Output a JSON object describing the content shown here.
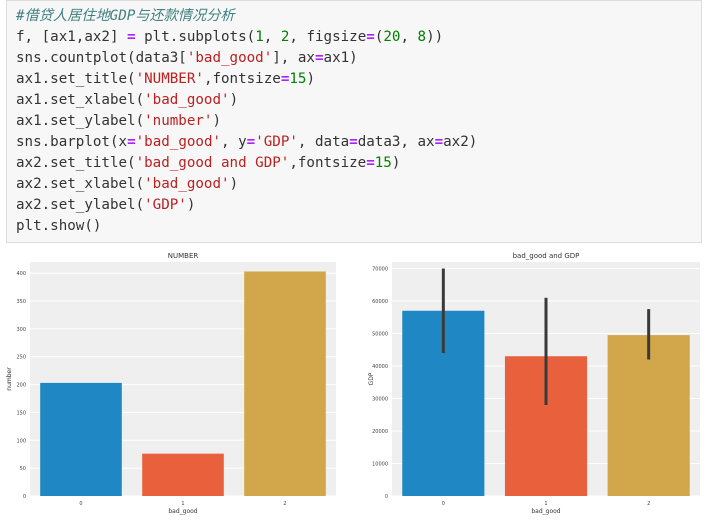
{
  "code_cell": {
    "lines": [
      [
        {
          "t": "cm",
          "v": "#借贷人居住地GDP与还款情况分析"
        }
      ],
      [
        {
          "t": "n",
          "v": "f, [ax1,ax2] "
        },
        {
          "t": "op",
          "v": "="
        },
        {
          "t": "n",
          "v": " plt."
        },
        {
          "t": "fn",
          "v": "subplots"
        },
        {
          "t": "n",
          "v": "("
        },
        {
          "t": "num",
          "v": "1"
        },
        {
          "t": "n",
          "v": ", "
        },
        {
          "t": "num",
          "v": "2"
        },
        {
          "t": "n",
          "v": ", figsize"
        },
        {
          "t": "op",
          "v": "="
        },
        {
          "t": "n",
          "v": "("
        },
        {
          "t": "num",
          "v": "20"
        },
        {
          "t": "n",
          "v": ", "
        },
        {
          "t": "num",
          "v": "8"
        },
        {
          "t": "n",
          "v": "))"
        }
      ],
      [
        {
          "t": "n",
          "v": "sns."
        },
        {
          "t": "fn",
          "v": "countplot"
        },
        {
          "t": "n",
          "v": "(data3["
        },
        {
          "t": "str",
          "v": "'bad_good'"
        },
        {
          "t": "n",
          "v": "], ax"
        },
        {
          "t": "op",
          "v": "="
        },
        {
          "t": "n",
          "v": "ax1)"
        }
      ],
      [
        {
          "t": "n",
          "v": "ax1."
        },
        {
          "t": "fn",
          "v": "set_title"
        },
        {
          "t": "n",
          "v": "("
        },
        {
          "t": "str",
          "v": "'NUMBER'"
        },
        {
          "t": "n",
          "v": ",fontsize"
        },
        {
          "t": "op",
          "v": "="
        },
        {
          "t": "num",
          "v": "15"
        },
        {
          "t": "n",
          "v": ")"
        }
      ],
      [
        {
          "t": "n",
          "v": "ax1."
        },
        {
          "t": "fn",
          "v": "set_xlabel"
        },
        {
          "t": "n",
          "v": "("
        },
        {
          "t": "str",
          "v": "'bad_good'"
        },
        {
          "t": "n",
          "v": ")"
        }
      ],
      [
        {
          "t": "n",
          "v": "ax1."
        },
        {
          "t": "fn",
          "v": "set_ylabel"
        },
        {
          "t": "n",
          "v": "("
        },
        {
          "t": "str",
          "v": "'number'"
        },
        {
          "t": "n",
          "v": ")"
        }
      ],
      [
        {
          "t": "n",
          "v": "sns."
        },
        {
          "t": "fn",
          "v": "barplot"
        },
        {
          "t": "n",
          "v": "(x"
        },
        {
          "t": "op",
          "v": "="
        },
        {
          "t": "str",
          "v": "'bad_good'"
        },
        {
          "t": "n",
          "v": ", y"
        },
        {
          "t": "op",
          "v": "="
        },
        {
          "t": "str",
          "v": "'GDP'"
        },
        {
          "t": "n",
          "v": ", data"
        },
        {
          "t": "op",
          "v": "="
        },
        {
          "t": "n",
          "v": "data3, ax"
        },
        {
          "t": "op",
          "v": "="
        },
        {
          "t": "n",
          "v": "ax2)"
        }
      ],
      [
        {
          "t": "n",
          "v": "ax2."
        },
        {
          "t": "fn",
          "v": "set_title"
        },
        {
          "t": "n",
          "v": "("
        },
        {
          "t": "str",
          "v": "'bad_good and GDP'"
        },
        {
          "t": "n",
          "v": ",fontsize"
        },
        {
          "t": "op",
          "v": "="
        },
        {
          "t": "num",
          "v": "15"
        },
        {
          "t": "n",
          "v": ")"
        }
      ],
      [
        {
          "t": "n",
          "v": "ax2."
        },
        {
          "t": "fn",
          "v": "set_xlabel"
        },
        {
          "t": "n",
          "v": "("
        },
        {
          "t": "str",
          "v": "'bad_good'"
        },
        {
          "t": "n",
          "v": ")"
        }
      ],
      [
        {
          "t": "n",
          "v": "ax2."
        },
        {
          "t": "fn",
          "v": "set_ylabel"
        },
        {
          "t": "n",
          "v": "("
        },
        {
          "t": "str",
          "v": "'GDP'"
        },
        {
          "t": "n",
          "v": ")"
        }
      ],
      [
        {
          "t": "n",
          "v": "plt."
        },
        {
          "t": "fn",
          "v": "show"
        },
        {
          "t": "n",
          "v": "()"
        }
      ]
    ]
  },
  "chart_data": [
    {
      "type": "bar",
      "title": "NUMBER",
      "xlabel": "bad_good",
      "ylabel": "number",
      "categories": [
        "0",
        "1",
        "2"
      ],
      "values": [
        203,
        76,
        403
      ],
      "colors": [
        "#1f88c4",
        "#e8603c",
        "#d2a64a"
      ],
      "ylim": [
        0,
        420
      ],
      "yticks": [
        0,
        50,
        100,
        150,
        200,
        250,
        300,
        350,
        400
      ],
      "grid": true
    },
    {
      "type": "bar",
      "title": "bad_good and GDP",
      "xlabel": "bad_good",
      "ylabel": "GDP",
      "categories": [
        "0",
        "1",
        "2"
      ],
      "values": [
        57000,
        43000,
        49500
      ],
      "error_low": [
        44000,
        28000,
        42000
      ],
      "error_high": [
        70000,
        61000,
        57500
      ],
      "colors": [
        "#1f88c4",
        "#e8603c",
        "#d2a64a"
      ],
      "ylim": [
        0,
        72000
      ],
      "yticks": [
        0,
        10000,
        20000,
        30000,
        40000,
        50000,
        60000,
        70000
      ],
      "grid": true
    }
  ]
}
